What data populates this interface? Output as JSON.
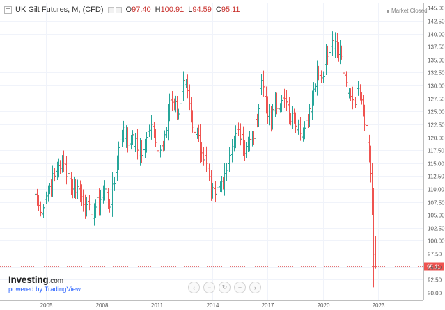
{
  "header": {
    "title": "UK Gilt Futures, M, (CFD)",
    "ohlc": [
      {
        "label": "O",
        "value": "97.40"
      },
      {
        "label": "H",
        "value": "100.91"
      },
      {
        "label": "L",
        "value": "94.59"
      },
      {
        "label": "C",
        "value": "95.11"
      }
    ],
    "market_status": "Market Closed"
  },
  "branding": {
    "logo_main": "Investing",
    "logo_suffix": ".com",
    "powered_by": "powered by TradingView"
  },
  "nav_buttons": [
    {
      "name": "scroll-left-button",
      "glyph": "‹"
    },
    {
      "name": "zoom-out-button",
      "glyph": "−"
    },
    {
      "name": "reset-button",
      "glyph": "↻"
    },
    {
      "name": "zoom-in-button",
      "glyph": "+"
    },
    {
      "name": "scroll-right-button",
      "glyph": "›"
    }
  ],
  "colors": {
    "up": "#26a69a",
    "down": "#ef5350",
    "price_line": "#e57373",
    "header_value": "#c9302c"
  },
  "chart_data": {
    "type": "ohlc",
    "interval": "monthly",
    "x_ticks": [
      "2005",
      "2008",
      "2011",
      "2014",
      "2017",
      "2020",
      "2023"
    ],
    "y_ticks": [
      "90.00",
      "92.50",
      "95.00",
      "97.50",
      "100.00",
      "102.50",
      "105.00",
      "107.50",
      "110.00",
      "112.50",
      "115.00",
      "117.50",
      "120.00",
      "122.50",
      "125.00",
      "127.50",
      "130.00",
      "132.50",
      "135.00",
      "137.50",
      "140.00",
      "142.50",
      "145.00"
    ],
    "ylim": [
      88.5,
      146
    ],
    "last_price": "95.11",
    "grid": true,
    "series": [
      {
        "date": "2004-06",
        "close": 109.0
      },
      {
        "date": "2004-09",
        "close": 105.5
      },
      {
        "date": "2004-12",
        "close": 108.0
      },
      {
        "date": "2005-03",
        "close": 110.5
      },
      {
        "date": "2005-06",
        "close": 112.5
      },
      {
        "date": "2005-09",
        "close": 114.5
      },
      {
        "date": "2005-12",
        "close": 115.0
      },
      {
        "date": "2006-03",
        "close": 113.0
      },
      {
        "date": "2006-06",
        "close": 110.0
      },
      {
        "date": "2006-09",
        "close": 110.5
      },
      {
        "date": "2006-12",
        "close": 108.5
      },
      {
        "date": "2007-03",
        "close": 107.0
      },
      {
        "date": "2007-06",
        "close": 105.0
      },
      {
        "date": "2007-09",
        "close": 106.5
      },
      {
        "date": "2007-12",
        "close": 108.0
      },
      {
        "date": "2008-03",
        "close": 110.0
      },
      {
        "date": "2008-06",
        "close": 106.5
      },
      {
        "date": "2008-09",
        "close": 111.0
      },
      {
        "date": "2008-12",
        "close": 118.0
      },
      {
        "date": "2009-03",
        "close": 122.0
      },
      {
        "date": "2009-06",
        "close": 118.5
      },
      {
        "date": "2009-09",
        "close": 120.5
      },
      {
        "date": "2009-12",
        "close": 117.5
      },
      {
        "date": "2010-03",
        "close": 116.5
      },
      {
        "date": "2010-06",
        "close": 120.0
      },
      {
        "date": "2010-09",
        "close": 122.5
      },
      {
        "date": "2010-12",
        "close": 119.0
      },
      {
        "date": "2011-03",
        "close": 117.5
      },
      {
        "date": "2011-06",
        "close": 120.5
      },
      {
        "date": "2011-09",
        "close": 127.0
      },
      {
        "date": "2011-12",
        "close": 126.0
      },
      {
        "date": "2012-03",
        "close": 124.5
      },
      {
        "date": "2012-06",
        "close": 131.0
      },
      {
        "date": "2012-09",
        "close": 129.0
      },
      {
        "date": "2012-12",
        "close": 122.0
      },
      {
        "date": "2013-03",
        "close": 121.0
      },
      {
        "date": "2013-06",
        "close": 117.0
      },
      {
        "date": "2013-09",
        "close": 115.0
      },
      {
        "date": "2013-12",
        "close": 109.0
      },
      {
        "date": "2014-03",
        "close": 109.0
      },
      {
        "date": "2014-06",
        "close": 110.5
      },
      {
        "date": "2014-09",
        "close": 113.0
      },
      {
        "date": "2014-12",
        "close": 116.5
      },
      {
        "date": "2015-03",
        "close": 119.5
      },
      {
        "date": "2015-06",
        "close": 121.5
      },
      {
        "date": "2015-09",
        "close": 118.0
      },
      {
        "date": "2015-12",
        "close": 119.0
      },
      {
        "date": "2016-03",
        "close": 120.0
      },
      {
        "date": "2016-06",
        "close": 123.0
      },
      {
        "date": "2016-09",
        "close": 131.0
      },
      {
        "date": "2016-12",
        "close": 126.5
      },
      {
        "date": "2017-03",
        "close": 122.5
      },
      {
        "date": "2017-06",
        "close": 127.5
      },
      {
        "date": "2017-09",
        "close": 126.0
      },
      {
        "date": "2017-12",
        "close": 127.5
      },
      {
        "date": "2018-03",
        "close": 124.0
      },
      {
        "date": "2018-06",
        "close": 123.5
      },
      {
        "date": "2018-09",
        "close": 122.5
      },
      {
        "date": "2018-12",
        "close": 121.0
      },
      {
        "date": "2019-03",
        "close": 123.0
      },
      {
        "date": "2019-06",
        "close": 127.5
      },
      {
        "date": "2019-09",
        "close": 133.0
      },
      {
        "date": "2019-12",
        "close": 131.5
      },
      {
        "date": "2020-03",
        "close": 136.0
      },
      {
        "date": "2020-06",
        "close": 137.5
      },
      {
        "date": "2020-09",
        "close": 138.5
      },
      {
        "date": "2020-12",
        "close": 137.0
      },
      {
        "date": "2021-03",
        "close": 132.0
      },
      {
        "date": "2021-06",
        "close": 128.5
      },
      {
        "date": "2021-09",
        "close": 127.0
      },
      {
        "date": "2021-12",
        "close": 129.5
      },
      {
        "date": "2022-03",
        "close": 125.0
      },
      {
        "date": "2022-06",
        "close": 119.0
      },
      {
        "date": "2022-08",
        "close": 113.0
      },
      {
        "date": "2022-09",
        "close": 107.0
      },
      {
        "date": "2022-10",
        "close": 97.4
      },
      {
        "date": "2022-11",
        "close": 95.11
      }
    ]
  }
}
